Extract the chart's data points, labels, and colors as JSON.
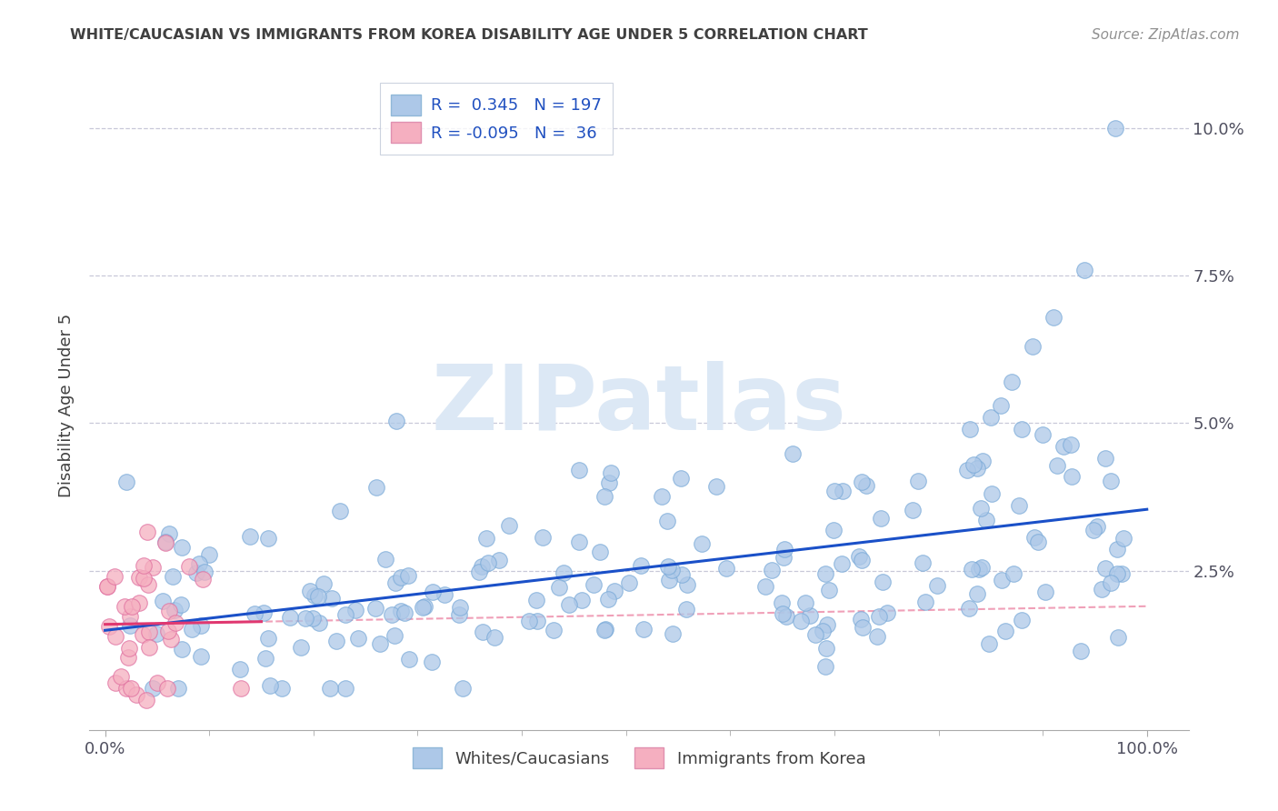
{
  "title": "WHITE/CAUCASIAN VS IMMIGRANTS FROM KOREA DISABILITY AGE UNDER 5 CORRELATION CHART",
  "source": "Source: ZipAtlas.com",
  "ylabel": "Disability Age Under 5",
  "ylim": [
    -0.002,
    0.108
  ],
  "xlim": [
    -0.015,
    1.04
  ],
  "blue_R": 0.345,
  "blue_N": 197,
  "pink_R": -0.095,
  "pink_N": 36,
  "blue_color": "#adc8e8",
  "pink_color": "#f5afc0",
  "blue_line_color": "#1a50c8",
  "pink_line_color": "#e03870",
  "pink_dash_color": "#f0a0b8",
  "watermark_color": "#dce8f5",
  "legend_label_blue": "Whites/Caucasians",
  "legend_label_pink": "Immigrants from Korea",
  "background_color": "#ffffff",
  "grid_color": "#c8c8d8",
  "title_color": "#404040",
  "source_color": "#909090",
  "yticks": [
    0.025,
    0.05,
    0.075,
    0.1
  ],
  "ytick_labels": [
    "2.5%",
    "5.0%",
    "7.5%",
    "10.0%"
  ],
  "xticks": [
    0.0,
    1.0
  ],
  "xtick_labels": [
    "0.0%",
    "100.0%"
  ]
}
